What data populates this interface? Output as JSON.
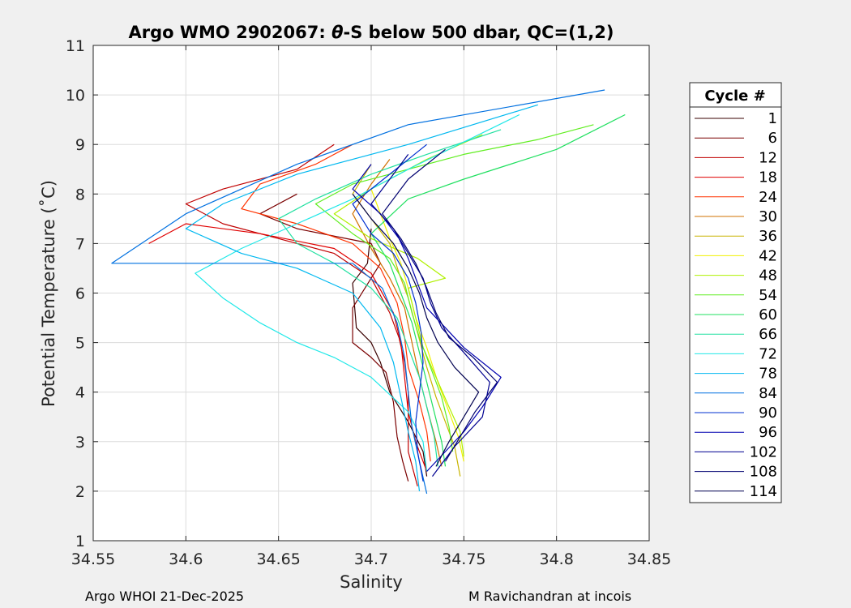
{
  "chart_data": {
    "type": "line",
    "title": "Argo WMO 2902067: θ-S below 500 dbar,  QC=(1,2)",
    "title_parts": {
      "pre": "Argo WMO 2902067: ",
      "theta": "θ",
      "post": "-S below 500 dbar,  QC=(1,2)"
    },
    "xlabel": "Salinity",
    "ylabel": "Potential Temperature (˚C)",
    "xlim": [
      34.55,
      34.85
    ],
    "ylim": [
      1,
      11
    ],
    "xticks": [
      "34.55",
      "34.6",
      "34.65",
      "34.7",
      "34.75",
      "34.8",
      "34.85"
    ],
    "yticks": [
      "1",
      "2",
      "3",
      "4",
      "5",
      "6",
      "7",
      "8",
      "9",
      "10",
      "11"
    ],
    "grid": true,
    "legend": {
      "title": "Cycle #",
      "position": "right",
      "entries": [
        "1",
        "6",
        "12",
        "18",
        "24",
        "30",
        "36",
        "42",
        "48",
        "54",
        "60",
        "66",
        "72",
        "78",
        "84",
        "90",
        "96",
        "102",
        "108",
        "114"
      ],
      "colors": [
        "#3a0000",
        "#7a0000",
        "#c00000",
        "#e00000",
        "#ff3300",
        "#d07000",
        "#c8b400",
        "#f0f000",
        "#b0f000",
        "#60ee20",
        "#20e060",
        "#20e0a0",
        "#20e8e8",
        "#00b8f0",
        "#0070e0",
        "#0030d0",
        "#0000b0",
        "#000090",
        "#000070",
        "#000050"
      ]
    },
    "series": [
      {
        "name": "1",
        "color": "#3a0000",
        "x": [
          34.73,
          34.728,
          34.72,
          34.71,
          34.705,
          34.7,
          34.692,
          34.69,
          34.698,
          34.7
        ],
        "y": [
          2.3,
          2.8,
          3.4,
          4.0,
          4.6,
          5.0,
          5.3,
          6.2,
          6.6,
          7.3
        ]
      },
      {
        "name": "6",
        "color": "#7a0000",
        "x": [
          34.72,
          34.717,
          34.714,
          34.712,
          34.708,
          34.7,
          34.69,
          34.69,
          34.705,
          34.7,
          34.66,
          34.64,
          34.66
        ],
        "y": [
          2.2,
          2.6,
          3.1,
          3.8,
          4.4,
          4.7,
          5.0,
          5.7,
          6.6,
          7.0,
          7.3,
          7.6,
          8.0
        ]
      },
      {
        "name": "12",
        "color": "#c00000",
        "x": [
          34.725,
          34.72,
          34.72,
          34.72,
          34.718,
          34.715,
          34.71,
          34.7,
          34.68,
          34.65,
          34.62,
          34.6,
          34.62,
          34.66,
          34.68
        ],
        "y": [
          2.1,
          2.8,
          3.4,
          4.0,
          4.6,
          5.1,
          5.6,
          6.3,
          6.8,
          7.1,
          7.4,
          7.8,
          8.1,
          8.5,
          9.0
        ]
      },
      {
        "name": "18",
        "color": "#e00000",
        "x": [
          34.73,
          34.724,
          34.72,
          34.718,
          34.716,
          34.712,
          34.7,
          34.68,
          34.64,
          34.6,
          34.58
        ],
        "y": [
          2.4,
          3.0,
          3.6,
          4.3,
          5.0,
          5.6,
          6.4,
          6.9,
          7.2,
          7.4,
          7.0
        ]
      },
      {
        "name": "24",
        "color": "#ff3300",
        "x": [
          34.732,
          34.73,
          34.726,
          34.72,
          34.718,
          34.714,
          34.705,
          34.69,
          34.66,
          34.63,
          34.64,
          34.67,
          34.69
        ],
        "y": [
          2.6,
          3.2,
          3.8,
          4.5,
          5.1,
          5.8,
          6.5,
          7.0,
          7.4,
          7.7,
          8.2,
          8.6,
          9.0
        ]
      },
      {
        "name": "30",
        "color": "#d07000",
        "x": [
          34.738,
          34.735,
          34.73,
          34.726,
          34.722,
          34.718,
          34.71,
          34.7,
          34.69,
          34.7,
          34.71
        ],
        "y": [
          2.5,
          3.0,
          3.7,
          4.3,
          5.0,
          5.7,
          6.3,
          6.9,
          7.6,
          8.2,
          8.7
        ]
      },
      {
        "name": "36",
        "color": "#c8b400",
        "x": [
          34.748,
          34.745,
          34.74,
          34.735,
          34.73,
          34.725,
          34.72,
          34.715,
          34.71,
          34.7,
          34.69,
          34.7
        ],
        "y": [
          2.3,
          2.9,
          3.4,
          3.9,
          4.5,
          5.2,
          5.9,
          6.4,
          7.0,
          7.5,
          8.0,
          8.6
        ]
      },
      {
        "name": "42",
        "color": "#f0f000",
        "x": [
          34.75,
          34.747,
          34.742,
          34.736,
          34.73,
          34.724,
          34.72,
          34.716,
          34.71,
          34.705,
          34.7
        ],
        "y": [
          2.6,
          3.1,
          3.6,
          4.2,
          4.9,
          5.5,
          6.1,
          6.6,
          7.1,
          7.6,
          8.1
        ]
      },
      {
        "name": "48",
        "color": "#b0f000",
        "x": [
          34.75,
          34.748,
          34.742,
          34.735,
          34.728,
          34.724,
          34.72,
          34.74,
          34.725,
          34.7,
          34.68,
          34.7,
          34.73,
          34.76
        ],
        "y": [
          2.7,
          3.2,
          3.7,
          4.3,
          4.9,
          5.5,
          6.1,
          6.3,
          6.7,
          7.1,
          7.6,
          8.1,
          8.7,
          9.2
        ]
      },
      {
        "name": "54",
        "color": "#60ee20",
        "x": [
          34.744,
          34.742,
          34.738,
          34.732,
          34.726,
          34.722,
          34.718,
          34.71,
          34.69,
          34.67,
          34.69,
          34.72,
          34.75,
          34.79,
          34.82
        ],
        "y": [
          2.8,
          3.3,
          3.9,
          4.5,
          5.1,
          5.6,
          6.2,
          6.7,
          7.2,
          7.8,
          8.2,
          8.5,
          8.8,
          9.1,
          9.4
        ]
      },
      {
        "name": "60",
        "color": "#20e060",
        "x": [
          34.74,
          34.738,
          34.734,
          34.73,
          34.726,
          34.722,
          34.716,
          34.71,
          34.7,
          34.72,
          34.75,
          34.8,
          34.837
        ],
        "y": [
          2.5,
          3.0,
          3.6,
          4.2,
          4.8,
          5.4,
          6.0,
          6.6,
          7.2,
          7.9,
          8.3,
          8.9,
          9.6
        ]
      },
      {
        "name": "66",
        "color": "#20e0a0",
        "x": [
          34.736,
          34.734,
          34.73,
          34.726,
          34.72,
          34.714,
          34.7,
          34.68,
          34.66,
          34.65,
          34.67,
          34.7,
          34.73,
          34.77
        ],
        "y": [
          2.5,
          3.1,
          3.7,
          4.3,
          4.9,
          5.5,
          6.1,
          6.6,
          7.0,
          7.5,
          7.9,
          8.4,
          8.8,
          9.3
        ]
      },
      {
        "name": "72",
        "color": "#20e8e8",
        "x": [
          34.73,
          34.728,
          34.72,
          34.7,
          34.68,
          34.66,
          34.64,
          34.62,
          34.605,
          34.63,
          34.66,
          34.69,
          34.72,
          34.78
        ],
        "y": [
          2.4,
          3.0,
          3.6,
          4.3,
          4.7,
          5.0,
          5.4,
          5.9,
          6.4,
          6.9,
          7.4,
          7.9,
          8.5,
          9.6
        ]
      },
      {
        "name": "78",
        "color": "#00b8f0",
        "x": [
          34.726,
          34.724,
          34.72,
          34.716,
          34.712,
          34.705,
          34.69,
          34.66,
          34.63,
          34.6,
          34.62,
          34.66,
          34.72,
          34.79
        ],
        "y": [
          2.0,
          2.6,
          3.2,
          3.9,
          4.6,
          5.3,
          6.0,
          6.5,
          6.8,
          7.3,
          7.8,
          8.4,
          9.0,
          9.8
        ]
      },
      {
        "name": "84",
        "color": "#0070e0",
        "x": [
          34.73,
          34.726,
          34.722,
          34.72,
          34.718,
          34.714,
          34.706,
          34.69,
          34.64,
          34.56,
          34.6,
          34.66,
          34.72,
          34.826
        ],
        "y": [
          1.95,
          2.6,
          3.3,
          4.0,
          4.7,
          5.4,
          6.1,
          6.6,
          6.6,
          6.6,
          7.6,
          8.6,
          9.4,
          10.1
        ]
      },
      {
        "name": "90",
        "color": "#0030d0",
        "x": [
          34.728,
          34.725,
          34.724,
          34.726,
          34.728,
          34.727,
          34.724,
          34.72,
          34.712,
          34.7,
          34.69,
          34.71,
          34.73
        ],
        "y": [
          2.2,
          2.8,
          3.4,
          4.0,
          4.6,
          5.2,
          5.8,
          6.3,
          6.8,
          7.2,
          7.8,
          8.4,
          9.0
        ]
      },
      {
        "name": "96",
        "color": "#0000b0",
        "x": [
          34.73,
          34.74,
          34.75,
          34.76,
          34.77,
          34.75,
          34.74,
          34.73,
          34.725,
          34.72,
          34.715,
          34.705,
          34.69,
          34.7
        ],
        "y": [
          2.4,
          2.8,
          3.2,
          3.7,
          4.3,
          4.9,
          5.3,
          5.7,
          6.2,
          6.7,
          7.1,
          7.6,
          8.1,
          8.6
        ]
      },
      {
        "name": "102",
        "color": "#000090",
        "x": [
          34.733,
          34.745,
          34.76,
          34.764,
          34.75,
          34.738,
          34.732,
          34.728,
          34.72,
          34.712,
          34.7,
          34.71,
          34.72
        ],
        "y": [
          2.3,
          2.9,
          3.5,
          4.2,
          4.8,
          5.3,
          5.8,
          6.3,
          6.8,
          7.3,
          7.8,
          8.3,
          8.8
        ]
      },
      {
        "name": "108",
        "color": "#000070",
        "x": [
          34.74,
          34.748,
          34.756,
          34.768,
          34.755,
          34.742,
          34.735,
          34.73,
          34.724,
          34.716,
          34.706,
          34.72,
          34.74
        ],
        "y": [
          2.6,
          3.1,
          3.6,
          4.2,
          4.7,
          5.1,
          5.6,
          6.1,
          6.6,
          7.1,
          7.6,
          8.3,
          8.9
        ]
      },
      {
        "name": "114",
        "color": "#000050",
        "x": [
          34.735,
          34.742,
          34.75,
          34.758,
          34.745,
          34.736,
          34.73,
          34.726,
          34.72,
          34.712,
          34.7,
          34.69
        ],
        "y": [
          2.5,
          3.0,
          3.5,
          4.0,
          4.5,
          5.0,
          5.5,
          6.0,
          6.5,
          7.0,
          7.5,
          8.0
        ]
      }
    ]
  },
  "footer": {
    "left": "Argo WHOI 21-Dec-2025",
    "right": "M Ravichandran at incois"
  }
}
